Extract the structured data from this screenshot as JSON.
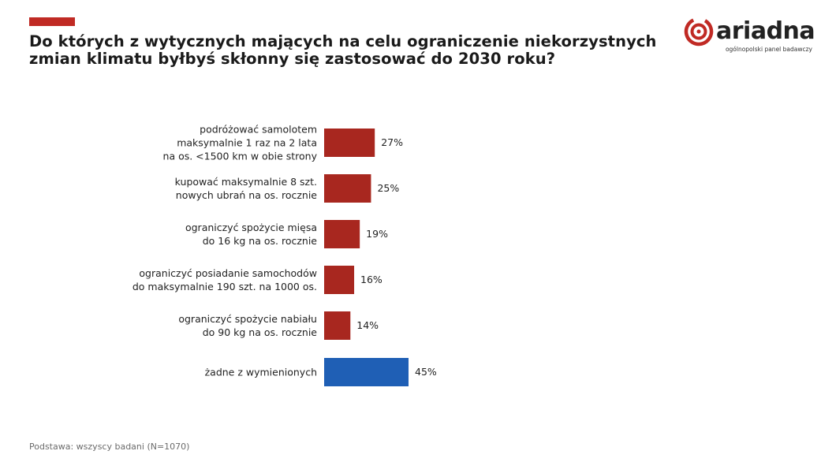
{
  "header": {
    "title_line1": "Do których z wytycznych mających na celu ograniczenie niekorzystnych",
    "title_line2": "zmian klimatu byłbyś skłonny się zastosować do 2030 roku?"
  },
  "logo": {
    "name": "ariadna",
    "tagline": "ogólnopolski panel badawczy"
  },
  "colors": {
    "accent": "#c02a24",
    "bar_red": "#a8271f",
    "bar_blue": "#1f5fb5"
  },
  "chart_data": {
    "type": "bar",
    "orientation": "horizontal",
    "categories": [
      [
        "podróżować samolotem",
        "maksymalnie 1 raz na 2 lata",
        "na os. <1500 km w obie strony"
      ],
      [
        "kupować maksymalnie 8 szt.",
        "nowych ubrań na os. rocznie"
      ],
      [
        "ograniczyć spożycie mięsa",
        "do 16 kg na os. rocznie"
      ],
      [
        "ograniczyć posiadanie samochodów",
        "do maksymalnie 190 szt. na 1000 os."
      ],
      [
        "ograniczyć spożycie nabiału",
        "do 90 kg na os. rocznie"
      ],
      [
        "żadne z wymienionych"
      ]
    ],
    "values": [
      27,
      25,
      19,
      16,
      14,
      45
    ],
    "value_labels": [
      "27%",
      "25%",
      "19%",
      "16%",
      "14%",
      "45%"
    ],
    "bar_colors": [
      "bar_red",
      "bar_red",
      "bar_red",
      "bar_red",
      "bar_red",
      "bar_blue"
    ],
    "unit": "%",
    "xlim": [
      0,
      45
    ],
    "grid": false,
    "legend": "none"
  },
  "footnote": "Podstawa: wszyscy badani (N=1070)"
}
